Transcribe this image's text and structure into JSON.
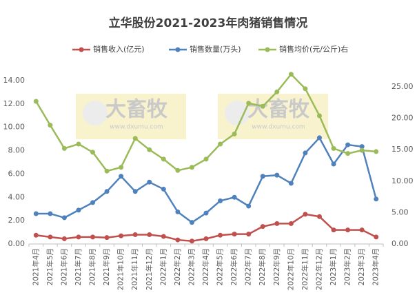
{
  "chart_data": {
    "type": "line",
    "title": "立华股份2021-2023年肉猪销售情况",
    "categories": [
      "2021年4月",
      "2021年5月",
      "2021年6月",
      "2021年7月",
      "2021年8月",
      "2021年9月",
      "2021年10月",
      "2021年11月",
      "2021年12月",
      "2022年1月",
      "2022年2月",
      "2022年3月",
      "2022年4月",
      "2022年5月",
      "2022年6月",
      "2022年7月",
      "2022年8月",
      "2022年9月",
      "2022年10月",
      "2022年11月",
      "2022年12月",
      "2023年1月",
      "2023年2月",
      "2023年3月",
      "2023年4月"
    ],
    "series": [
      {
        "name": "销售收入(亿元)",
        "color": "#c0504d",
        "values": [
          0.75,
          0.6,
          0.45,
          0.6,
          0.6,
          0.55,
          0.7,
          0.8,
          0.8,
          0.65,
          0.35,
          0.25,
          0.45,
          0.75,
          0.85,
          0.85,
          1.5,
          1.75,
          1.75,
          2.55,
          2.35,
          1.2,
          1.2,
          1.2,
          0.6
        ]
      },
      {
        "name": "销售数量(万头)",
        "color": "#4f81bd",
        "values": [
          2.6,
          2.6,
          2.25,
          2.9,
          3.55,
          4.5,
          5.8,
          4.5,
          5.3,
          4.7,
          2.75,
          1.85,
          2.65,
          3.7,
          4.0,
          3.25,
          5.8,
          5.9,
          5.2,
          7.8,
          9.1,
          6.85,
          8.5,
          8.35,
          3.85
        ]
      },
      {
        "name": "销售均价(元/公斤)右",
        "color": "#9bbb59",
        "axis": "y2",
        "values": [
          22.7,
          18.9,
          15.2,
          15.9,
          14.6,
          11.6,
          12.2,
          16.8,
          15.0,
          13.5,
          11.7,
          12.2,
          13.5,
          15.9,
          17.5,
          22.4,
          21.9,
          24.2,
          27.0,
          24.7,
          20.4,
          15.2,
          14.4,
          14.9,
          14.7
        ]
      }
    ],
    "ylim": [
      0,
      15
    ],
    "yticks": [
      {
        "value": 0,
        "label": "0.00"
      },
      {
        "value": 2,
        "label": "2.00"
      },
      {
        "value": 4,
        "label": "4.00"
      },
      {
        "value": 6,
        "label": "6.00"
      },
      {
        "value": 8,
        "label": "8.00"
      },
      {
        "value": 10,
        "label": "10.00"
      },
      {
        "value": 12,
        "label": "12.00"
      },
      {
        "value": 14,
        "label": "14.00"
      }
    ],
    "y2lim": [
      0,
      27.85
    ],
    "y2ticks": [
      {
        "value": 0,
        "label": "0.00"
      },
      {
        "value": 5,
        "label": "5.00"
      },
      {
        "value": 10,
        "label": "10.00"
      },
      {
        "value": 15,
        "label": "15.00"
      },
      {
        "value": 20,
        "label": "20.00"
      },
      {
        "value": 25,
        "label": "25.00"
      }
    ],
    "legend": "top",
    "watermark": [
      "大畜牧",
      "www.dxumu.com"
    ]
  }
}
